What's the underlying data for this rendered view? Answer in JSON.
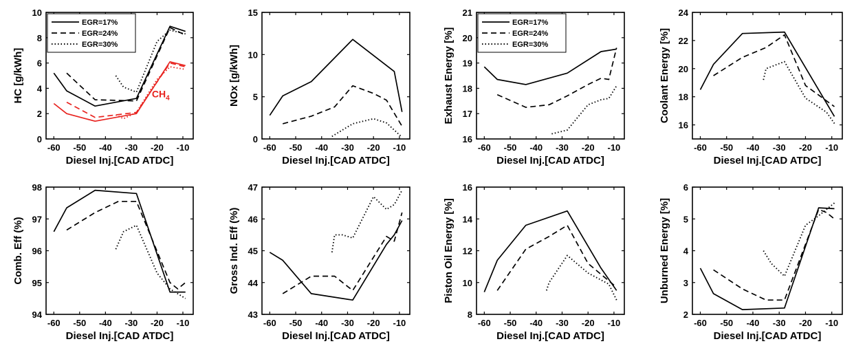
{
  "figure": {
    "series_names": [
      "EGR=17%",
      "EGR=24%",
      "EGR=30%"
    ],
    "xlabel": "Diesel Inj.[CAD ATDC]",
    "xlim": [
      -63,
      -6
    ],
    "xticks": [
      -60,
      -50,
      -40,
      -30,
      -20,
      -10
    ],
    "colors": {
      "line": "#000000",
      "ch4": "#e8231f"
    }
  },
  "chart_data": [
    {
      "type": "line",
      "ylabel": "HC [g/kWh]",
      "ylim": [
        0,
        10
      ],
      "yticks": [
        0,
        2,
        4,
        6,
        8,
        10
      ],
      "legend": "top-left",
      "annotation": {
        "text": "CH",
        "sub": "4",
        "x": -22,
        "y": 3.3,
        "color": "#e8231f"
      },
      "series": [
        {
          "name": "EGR=17%",
          "style": "solid",
          "x": [
            -60,
            -55,
            -44,
            -28,
            -15,
            -9
          ],
          "y": [
            5.2,
            3.8,
            2.6,
            3.2,
            8.9,
            8.5
          ]
        },
        {
          "name": "EGR=24%",
          "style": "dashed",
          "x": [
            -55,
            -44,
            -28,
            -15,
            -9
          ],
          "y": [
            5.2,
            3.1,
            3.0,
            8.8,
            8.2
          ]
        },
        {
          "name": "EGR=30%",
          "style": "dotted",
          "x": [
            -36,
            -33,
            -28,
            -20,
            -15,
            -9
          ],
          "y": [
            5.0,
            4.1,
            3.7,
            7.7,
            8.6,
            8.3
          ]
        },
        {
          "name": "",
          "style": "solid",
          "color": "#e8231f",
          "x": [
            -60,
            -55,
            -44,
            -28,
            -15,
            -9
          ],
          "y": [
            2.8,
            2.0,
            1.4,
            2.0,
            6.1,
            5.8
          ]
        },
        {
          "name": "",
          "style": "dashed",
          "color": "#e8231f",
          "x": [
            -55,
            -44,
            -28,
            -15,
            -9
          ],
          "y": [
            2.9,
            1.7,
            2.1,
            6.0,
            5.7
          ]
        },
        {
          "name": "",
          "style": "dotted",
          "color": "#e8231f",
          "x": [
            -36,
            -33,
            -28,
            -20,
            -15,
            -9
          ],
          "y": [
            1.9,
            1.6,
            2.1,
            4.7,
            5.7,
            5.5
          ]
        }
      ]
    },
    {
      "type": "line",
      "ylabel": "NOx [g/kWh]",
      "ylim": [
        0,
        15
      ],
      "yticks": [
        0,
        5,
        10,
        15
      ],
      "series": [
        {
          "name": "EGR=17%",
          "style": "solid",
          "x": [
            -60,
            -55,
            -44,
            -28,
            -12,
            -9
          ],
          "y": [
            2.8,
            5.1,
            6.8,
            11.8,
            8.0,
            3.2
          ]
        },
        {
          "name": "EGR=24%",
          "style": "dashed",
          "x": [
            -55,
            -44,
            -35,
            -28,
            -20,
            -15,
            -9
          ],
          "y": [
            1.8,
            2.7,
            3.8,
            6.3,
            5.4,
            4.6,
            1.5
          ]
        },
        {
          "name": "EGR=30%",
          "style": "dotted",
          "x": [
            -36,
            -28,
            -20,
            -15,
            -9
          ],
          "y": [
            0.3,
            1.8,
            2.4,
            1.9,
            0.2
          ]
        }
      ]
    },
    {
      "type": "line",
      "ylabel": "Exhaust Energy [%]",
      "ylim": [
        16,
        21
      ],
      "yticks": [
        16,
        17,
        18,
        19,
        20,
        21
      ],
      "legend": "top-right",
      "series": [
        {
          "name": "EGR=17%",
          "style": "solid",
          "x": [
            -60,
            -55,
            -44,
            -28,
            -15,
            -9
          ],
          "y": [
            18.85,
            18.35,
            18.15,
            18.6,
            19.45,
            19.55
          ]
        },
        {
          "name": "EGR=24%",
          "style": "dashed",
          "x": [
            -55,
            -44,
            -35,
            -28,
            -20,
            -15,
            -12,
            -9
          ],
          "y": [
            17.75,
            17.25,
            17.35,
            17.7,
            18.15,
            18.4,
            18.35,
            19.6
          ]
        },
        {
          "name": "EGR=30%",
          "style": "dotted",
          "x": [
            -34,
            -28,
            -20,
            -15,
            -12,
            -9
          ],
          "y": [
            16.2,
            16.35,
            17.35,
            17.55,
            17.6,
            18.1
          ]
        }
      ]
    },
    {
      "type": "line",
      "ylabel": "Coolant Energy [%]",
      "ylim": [
        15,
        24
      ],
      "yticks": [
        16,
        18,
        20,
        22,
        24
      ],
      "series": [
        {
          "name": "EGR=17%",
          "style": "solid",
          "x": [
            -60,
            -55,
            -44,
            -28,
            -9
          ],
          "y": [
            18.5,
            20.3,
            22.5,
            22.6,
            16.6
          ]
        },
        {
          "name": "EGR=24%",
          "style": "dashed",
          "x": [
            -55,
            -44,
            -35,
            -28,
            -20,
            -9
          ],
          "y": [
            19.5,
            20.8,
            21.5,
            22.4,
            18.8,
            17.3
          ]
        },
        {
          "name": "EGR=30%",
          "style": "dotted",
          "x": [
            -36,
            -35,
            -28,
            -20,
            -12,
            -9
          ],
          "y": [
            19.2,
            20.0,
            20.5,
            17.9,
            16.9,
            16.1
          ]
        }
      ]
    },
    {
      "type": "line",
      "ylabel": "Comb. Eff (%)",
      "ylim": [
        94,
        98
      ],
      "yticks": [
        94,
        95,
        96,
        97,
        98
      ],
      "series": [
        {
          "name": "EGR=17%",
          "style": "solid",
          "x": [
            -60,
            -55,
            -44,
            -28,
            -15,
            -9
          ],
          "y": [
            96.6,
            97.35,
            97.9,
            97.8,
            94.7,
            94.7
          ]
        },
        {
          "name": "EGR=24%",
          "style": "dashed",
          "x": [
            -55,
            -44,
            -35,
            -28,
            -15,
            -12,
            -9
          ],
          "y": [
            96.65,
            97.2,
            97.55,
            97.55,
            95.0,
            94.8,
            95.0
          ]
        },
        {
          "name": "EGR=30%",
          "style": "dotted",
          "x": [
            -36,
            -33,
            -28,
            -20,
            -15,
            -9
          ],
          "y": [
            96.05,
            96.6,
            96.8,
            95.3,
            94.8,
            94.5
          ]
        }
      ]
    },
    {
      "type": "line",
      "ylabel": "Gross Ind. Eff (%)",
      "ylim": [
        43,
        47
      ],
      "yticks": [
        43,
        44,
        45,
        46,
        47
      ],
      "series": [
        {
          "name": "EGR=17%",
          "style": "solid",
          "x": [
            -60,
            -55,
            -44,
            -28,
            -15,
            -12,
            -9
          ],
          "y": [
            44.95,
            44.7,
            43.65,
            43.45,
            45.2,
            45.5,
            45.95
          ]
        },
        {
          "name": "EGR=24%",
          "style": "dashed",
          "x": [
            -55,
            -44,
            -35,
            -28,
            -15,
            -12,
            -9
          ],
          "y": [
            43.65,
            44.2,
            44.2,
            43.75,
            45.45,
            45.3,
            46.2
          ]
        },
        {
          "name": "EGR=30%",
          "style": "dotted",
          "x": [
            -36,
            -35,
            -32,
            -28,
            -20,
            -15,
            -12,
            -9
          ],
          "y": [
            44.95,
            45.5,
            45.5,
            45.4,
            46.7,
            46.3,
            46.45,
            46.9
          ]
        }
      ]
    },
    {
      "type": "line",
      "ylabel": "Piston Oil Energy [%]",
      "ylim": [
        8,
        16
      ],
      "yticks": [
        8,
        10,
        12,
        14,
        16
      ],
      "series": [
        {
          "name": "EGR=17%",
          "style": "solid",
          "x": [
            -60,
            -55,
            -44,
            -28,
            -15,
            -9
          ],
          "y": [
            9.4,
            11.4,
            13.6,
            14.5,
            10.9,
            9.5
          ]
        },
        {
          "name": "EGR=24%",
          "style": "dashed",
          "x": [
            -55,
            -44,
            -35,
            -28,
            -20,
            -9
          ],
          "y": [
            9.5,
            12.1,
            12.9,
            13.6,
            11.2,
            9.7
          ]
        },
        {
          "name": "EGR=30%",
          "style": "dotted",
          "x": [
            -36,
            -35,
            -28,
            -20,
            -12,
            -9
          ],
          "y": [
            9.5,
            10.0,
            11.7,
            10.6,
            9.9,
            8.9
          ]
        }
      ]
    },
    {
      "type": "line",
      "ylabel": "Unburned Energy [%]",
      "ylim": [
        2,
        6
      ],
      "yticks": [
        2,
        3,
        4,
        5,
        6
      ],
      "series": [
        {
          "name": "EGR=17%",
          "style": "solid",
          "x": [
            -60,
            -55,
            -44,
            -28,
            -15,
            -9
          ],
          "y": [
            3.45,
            2.65,
            2.15,
            2.2,
            5.35,
            5.32
          ]
        },
        {
          "name": "EGR=24%",
          "style": "dashed",
          "x": [
            -55,
            -44,
            -35,
            -28,
            -15,
            -12,
            -9
          ],
          "y": [
            3.4,
            2.8,
            2.45,
            2.45,
            5.3,
            5.2,
            5.0
          ]
        },
        {
          "name": "EGR=30%",
          "style": "dotted",
          "x": [
            -36,
            -33,
            -28,
            -20,
            -15,
            -9
          ],
          "y": [
            4.0,
            3.6,
            3.2,
            4.8,
            5.1,
            5.5
          ]
        }
      ]
    }
  ]
}
